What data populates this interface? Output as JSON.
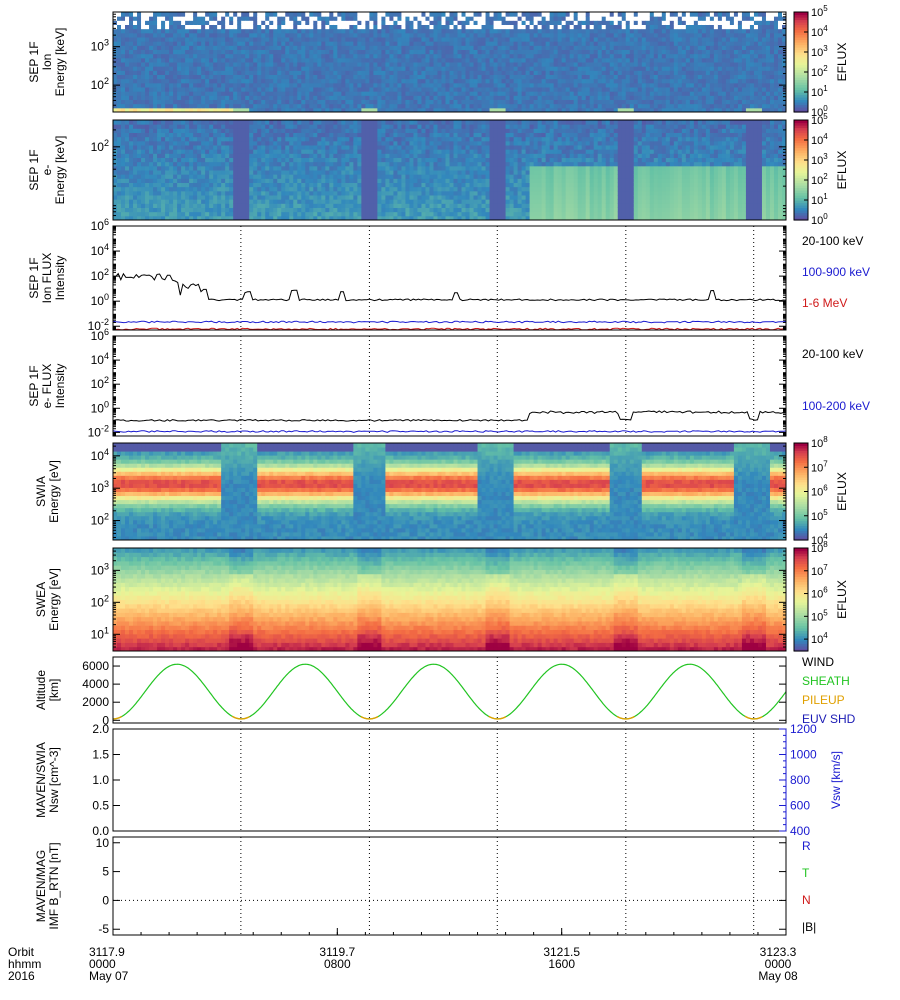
{
  "chart_data": [
    {
      "type": "heatmap",
      "ylabel": [
        "SEP 1F",
        "Ion",
        "Energy [keV]"
      ],
      "yscale": "log",
      "ylim": [
        20,
        8000
      ],
      "yticks": [
        {
          "v": 100,
          "l": "10^2"
        },
        {
          "v": 1000,
          "l": "10^3"
        }
      ],
      "colorbar": {
        "label": "EFLUX",
        "range": [
          1,
          100000
        ],
        "scale": "log",
        "ticks": [
          {
            "v": 1,
            "l": "10^0"
          },
          {
            "v": 10,
            "l": "10^1"
          },
          {
            "v": 100,
            "l": "10^2"
          },
          {
            "v": 1000,
            "l": "10^3"
          },
          {
            "v": 10000,
            "l": "10^4"
          },
          {
            "v": 100000,
            "l": "10^5"
          }
        ]
      }
    },
    {
      "type": "heatmap",
      "ylabel": [
        "SEP 1F",
        "e-",
        "Energy [keV]"
      ],
      "yscale": "log",
      "ylim": [
        5,
        300
      ],
      "yticks": [
        {
          "v": 100,
          "l": "10^2"
        }
      ],
      "colorbar": {
        "label": "EFLUX",
        "range": [
          1,
          100000
        ],
        "scale": "log",
        "ticks": [
          {
            "v": 1,
            "l": "10^0"
          },
          {
            "v": 10,
            "l": "10^1"
          },
          {
            "v": 100,
            "l": "10^2"
          },
          {
            "v": 1000,
            "l": "10^3"
          },
          {
            "v": 10000,
            "l": "10^4"
          },
          {
            "v": 100000,
            "l": "10^5"
          }
        ]
      }
    },
    {
      "type": "line",
      "ylabel": [
        "SEP 1F",
        "Ion FLUX",
        "Intensity"
      ],
      "yscale": "log",
      "ylim": [
        0.005,
        1000000
      ],
      "yticks": [
        {
          "v": 0.01,
          "l": "10^-2"
        },
        {
          "v": 1,
          "l": "10^0"
        },
        {
          "v": 100,
          "l": "10^2"
        },
        {
          "v": 10000,
          "l": "10^4"
        },
        {
          "v": 1000000,
          "l": "10^6"
        }
      ],
      "series": [
        {
          "name": "20-100 keV",
          "color": "#000000",
          "baseline": 1.3,
          "spikes": [
            [
              0.0,
              200
            ],
            [
              0.02,
              120
            ],
            [
              0.05,
              100
            ],
            [
              0.08,
              80
            ],
            [
              0.12,
              20
            ],
            [
              0.2,
              5
            ],
            [
              0.27,
              8
            ],
            [
              0.34,
              6
            ],
            [
              0.51,
              5
            ],
            [
              0.89,
              8
            ]
          ]
        },
        {
          "name": "100-900 keV",
          "color": "#1a1ad0",
          "baseline": 0.022
        },
        {
          "name": "1-6 MeV",
          "color": "#d01a1a",
          "baseline": 0.006
        }
      ]
    },
    {
      "type": "line",
      "ylabel": [
        "SEP 1F",
        "e- FLUX",
        "Intensity"
      ],
      "yscale": "log",
      "ylim": [
        0.005,
        1000000
      ],
      "yticks": [
        {
          "v": 0.01,
          "l": "10^-2"
        },
        {
          "v": 1,
          "l": "10^0"
        },
        {
          "v": 100,
          "l": "10^2"
        },
        {
          "v": 10000,
          "l": "10^4"
        },
        {
          "v": 1000000,
          "l": "10^6"
        }
      ],
      "series": [
        {
          "name": "20-100 keV",
          "color": "#000000",
          "baseline": 0.1,
          "step": [
            [
              0.62,
              0.4
            ],
            [
              1.0,
              0.5
            ]
          ]
        },
        {
          "name": "100-200 keV",
          "color": "#1a1ad0",
          "baseline": 0.012
        }
      ]
    },
    {
      "type": "heatmap",
      "ylabel": [
        "SWIA",
        "Energy [eV]"
      ],
      "yscale": "log",
      "ylim": [
        25,
        25000
      ],
      "yticks": [
        {
          "v": 100,
          "l": "10^2"
        },
        {
          "v": 1000,
          "l": "10^3"
        },
        {
          "v": 10000,
          "l": "10^4"
        }
      ],
      "colorbar": {
        "label": "EFLUX",
        "range": [
          10000,
          100000000
        ],
        "scale": "log",
        "ticks": [
          {
            "v": 10000,
            "l": "10^4"
          },
          {
            "v": 100000,
            "l": "10^5"
          },
          {
            "v": 1000000,
            "l": "10^6"
          },
          {
            "v": 10000000,
            "l": "10^7"
          },
          {
            "v": 100000000,
            "l": "10^8"
          }
        ]
      }
    },
    {
      "type": "heatmap",
      "ylabel": [
        "SWEA",
        "Energy [eV]"
      ],
      "yscale": "log",
      "ylim": [
        3,
        5000
      ],
      "yticks": [
        {
          "v": 10,
          "l": "10^1"
        },
        {
          "v": 100,
          "l": "10^2"
        },
        {
          "v": 1000,
          "l": "10^3"
        }
      ],
      "colorbar": {
        "label": "EFLUX",
        "range": [
          3000,
          100000000
        ],
        "scale": "log",
        "ticks": [
          {
            "v": 10000,
            "l": "10^4"
          },
          {
            "v": 100000,
            "l": "10^5"
          },
          {
            "v": 1000000,
            "l": "10^6"
          },
          {
            "v": 10000000,
            "l": "10^7"
          },
          {
            "v": 100000000,
            "l": "10^8"
          }
        ]
      }
    },
    {
      "type": "line",
      "ylabel": [
        "Altitude",
        "[km]"
      ],
      "yscale": "linear",
      "ylim": [
        -300,
        7000
      ],
      "yticks": [
        {
          "v": 0,
          "l": "0"
        },
        {
          "v": 2000,
          "l": "2000"
        },
        {
          "v": 4000,
          "l": "4000"
        },
        {
          "v": 6000,
          "l": "6000"
        }
      ],
      "series": [
        {
          "name": "WIND",
          "color": "#000000"
        },
        {
          "name": "SHEATH",
          "color": "#22c422"
        },
        {
          "name": "PILEUP",
          "color": "#e0a000"
        },
        {
          "name": "EUV SHD",
          "color": "#1a1ab4"
        }
      ],
      "altitude": {
        "max": 6200,
        "min": 150,
        "period_fraction": 0.1905,
        "first_periapsis": 0.0
      }
    },
    {
      "type": "line",
      "ylabel": [
        "MAVEN/SWIA",
        "Nsw [cm^-3]"
      ],
      "yscale": "linear",
      "ylim": [
        0,
        2.0
      ],
      "yticks": [
        {
          "v": 0,
          "l": "0.0"
        },
        {
          "v": 0.5,
          "l": "0.5"
        },
        {
          "v": 1.0,
          "l": "1.0"
        },
        {
          "v": 1.5,
          "l": "1.5"
        },
        {
          "v": 2.0,
          "l": "2.0"
        }
      ],
      "right_axis": {
        "label": "Vsw [km/s]",
        "ylim": [
          400,
          1200
        ],
        "ticks": [
          {
            "v": 400,
            "l": "400"
          },
          {
            "v": 600,
            "l": "600"
          },
          {
            "v": 800,
            "l": "800"
          },
          {
            "v": 1000,
            "l": "1000"
          },
          {
            "v": 1200,
            "l": "1200"
          }
        ],
        "color": "#1a1ad0"
      },
      "series": []
    },
    {
      "type": "line",
      "ylabel": [
        "MAVEN/MAG",
        "IMF B_RTN [nT]"
      ],
      "yscale": "linear",
      "ylim": [
        -6,
        11
      ],
      "yticks": [
        {
          "v": -5,
          "l": "-5"
        },
        {
          "v": 0,
          "l": "0"
        },
        {
          "v": 5,
          "l": "5"
        },
        {
          "v": 10,
          "l": "10"
        }
      ],
      "zero_line": true,
      "series": [
        {
          "name": "R",
          "color": "#1a1ad0"
        },
        {
          "name": "T",
          "color": "#22c422"
        },
        {
          "name": "N",
          "color": "#d01a1a"
        },
        {
          "name": "|B|",
          "color": "#000000"
        }
      ]
    }
  ],
  "time_axis": {
    "row_labels": [
      "Orbit",
      "hhmm",
      "2016"
    ],
    "ticks": [
      {
        "frac": 0.0,
        "orbit": "3117.9",
        "hhmm": "0000",
        "date": "May 07"
      },
      {
        "frac": 0.3333,
        "orbit": "3119.7",
        "hhmm": "0800",
        "date": ""
      },
      {
        "frac": 0.6667,
        "orbit": "3121.5",
        "hhmm": "1600",
        "date": ""
      },
      {
        "frac": 1.0,
        "orbit": "3123.3",
        "hhmm": "0000",
        "date": "May 08"
      }
    ],
    "periapsis_fracs": [
      0.19,
      0.381,
      0.571,
      0.762,
      0.952
    ]
  }
}
